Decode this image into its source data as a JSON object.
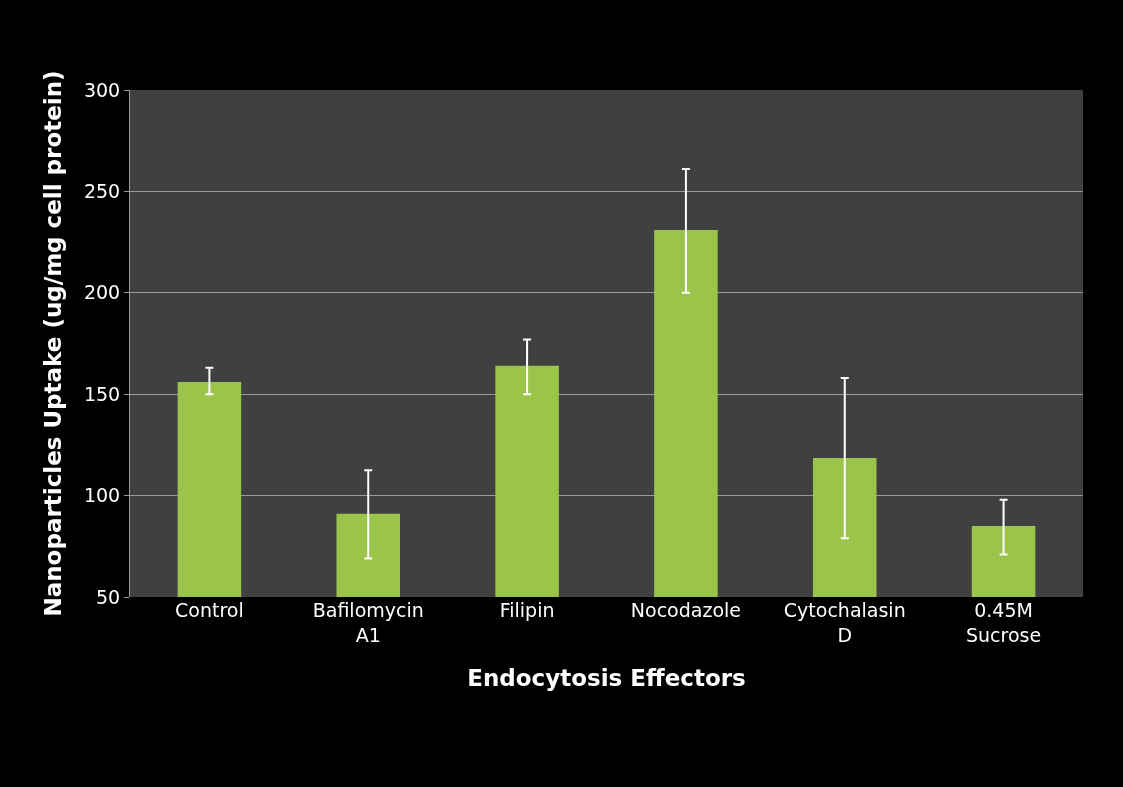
{
  "chart_data": {
    "type": "bar",
    "xlabel": "Endocytosis Effectors",
    "ylabel": "Nanoparticles Uptake (ug/mg cell protein)",
    "categories": [
      "Control",
      "Bafilomycin\nA1",
      "Filipin",
      "Nocodazole",
      "Cytochalasin\nD",
      "0.45M\nSucrose"
    ],
    "values": [
      156,
      91,
      164,
      231,
      118.5,
      85
    ],
    "errors": [
      [
        150,
        163
      ],
      [
        69,
        112.5
      ],
      [
        150,
        177
      ],
      [
        200,
        261
      ],
      [
        79,
        158
      ],
      [
        71,
        98
      ]
    ],
    "color": "#9bc44a",
    "ylim": [
      50,
      300
    ],
    "yticks": [
      50,
      100,
      150,
      200,
      250,
      300
    ],
    "grid": "y"
  }
}
